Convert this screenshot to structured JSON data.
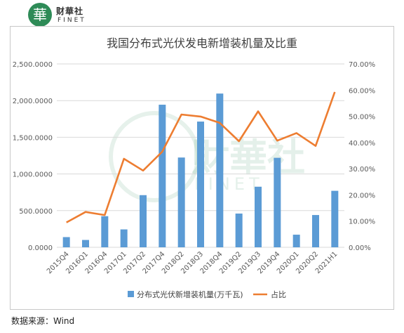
{
  "brand": {
    "logo_char": "華",
    "name": "财華社",
    "sub": "FINET"
  },
  "watermark": {
    "name": "財華社",
    "sub": "FINET"
  },
  "source_note": "数据来源：Wind",
  "colors": {
    "bar": "#5b9bd5",
    "line": "#ed7d31",
    "grid": "#d9d9d9",
    "watermark": "#2e8b57"
  },
  "chart_data": {
    "type": "bar",
    "title": "我国分布式光伏发电新增装机量及比重",
    "categories": [
      "2015Q4",
      "2016Q1",
      "2016Q4",
      "2017Q1",
      "2017Q2",
      "2017Q4",
      "2018Q2",
      "2018Q3",
      "2018Q4",
      "2019Q2",
      "2019Q3",
      "2019Q4",
      "2020Q1",
      "2020Q2",
      "2021H1"
    ],
    "series": [
      {
        "name": "分布式光伏新增装机量(万千瓦)",
        "type": "bar",
        "axis": "left",
        "values": [
          139,
          100,
          424,
          244,
          711,
          1944,
          1224,
          1714,
          2096,
          460,
          826,
          1220,
          172,
          440,
          770
        ]
      },
      {
        "name": "占比",
        "type": "line",
        "axis": "right",
        "values": [
          9.5,
          13.5,
          12.3,
          33.8,
          29.3,
          36.5,
          50.7,
          49.9,
          47.5,
          40.5,
          51.9,
          40.7,
          43.6,
          38.7,
          59.3
        ]
      }
    ],
    "y_left": {
      "lim": [
        0,
        2500
      ],
      "ticks": [
        0,
        500,
        1000,
        1500,
        2000,
        2500
      ],
      "tick_labels": [
        "0.0000",
        "500.0000",
        "1,000.0000",
        "1,500.0000",
        "2,000.0000",
        "2,500.0000"
      ]
    },
    "y_right": {
      "lim": [
        0,
        70
      ],
      "ticks": [
        0,
        10,
        20,
        30,
        40,
        50,
        60,
        70
      ],
      "tick_labels": [
        "0.00%",
        "10.00%",
        "20.00%",
        "30.00%",
        "40.00%",
        "50.00%",
        "60.00%",
        "70.00%"
      ]
    },
    "grid": true,
    "legend": "bottom"
  }
}
